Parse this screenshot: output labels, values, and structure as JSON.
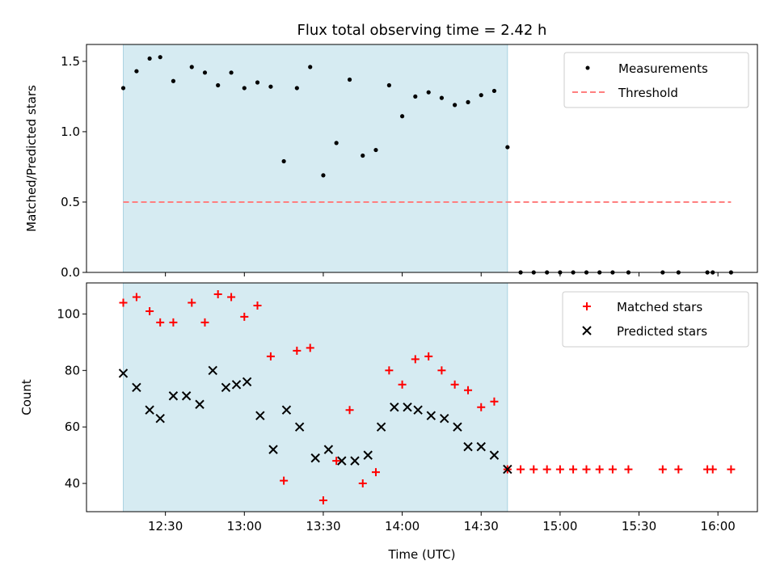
{
  "chart_data": [
    {
      "type": "scatter",
      "title": "Flux total observing time = 2.42 h",
      "xlabel": "",
      "ylabel": "Matched/Predicted stars",
      "xlim": [
        12.0,
        16.25
      ],
      "ylim": [
        0.0,
        1.62
      ],
      "yticks": [
        0.0,
        0.5,
        1.0,
        1.5
      ],
      "yticklabels": [
        "0.0",
        "0.5",
        "1.0",
        "1.5"
      ],
      "shaded_region": {
        "x": [
          12.233,
          14.667
        ],
        "color": "#add8e6"
      },
      "legend": {
        "location": "top-right",
        "entries": [
          "Measurements",
          "Threshold"
        ]
      },
      "series": [
        {
          "name": "Measurements",
          "marker": "dot",
          "color": "#000000",
          "x": [
            12.233,
            12.317,
            12.4,
            12.467,
            12.55,
            12.667,
            12.75,
            12.833,
            12.917,
            13.0,
            13.083,
            13.167,
            13.25,
            13.333,
            13.417,
            13.5,
            13.583,
            13.667,
            13.75,
            13.833,
            13.917,
            14.0,
            14.083,
            14.167,
            14.25,
            14.333,
            14.417,
            14.5,
            14.583,
            14.667,
            14.75,
            14.833,
            14.917,
            15.0,
            15.083,
            15.167,
            15.25,
            15.333,
            15.433,
            15.65,
            15.75,
            15.933,
            15.967,
            16.083
          ],
          "y": [
            1.31,
            1.43,
            1.52,
            1.53,
            1.36,
            1.46,
            1.42,
            1.33,
            1.42,
            1.31,
            1.35,
            1.32,
            0.79,
            1.31,
            1.46,
            0.69,
            0.92,
            1.37,
            0.83,
            0.87,
            1.33,
            1.11,
            1.25,
            1.28,
            1.24,
            1.19,
            1.21,
            1.26,
            1.29,
            0.89,
            0.0,
            0.0,
            0.0,
            0.0,
            0.0,
            0.0,
            0.0,
            0.0,
            0.0,
            0.0,
            0.0,
            0.0,
            0.0,
            0.0
          ]
        },
        {
          "name": "Threshold",
          "style": "dashed-line",
          "color": "#ff7f7f",
          "x": [
            12.233,
            16.083
          ],
          "y": [
            0.5,
            0.5
          ]
        }
      ]
    },
    {
      "type": "scatter",
      "title": "",
      "xlabel": "Time (UTC)",
      "ylabel": "Count",
      "xlim": [
        12.0,
        16.25
      ],
      "ylim": [
        30,
        111
      ],
      "yticks": [
        40,
        60,
        80,
        100
      ],
      "yticklabels": [
        "40",
        "60",
        "80",
        "100"
      ],
      "xticks": [
        12.5,
        13.0,
        13.5,
        14.0,
        14.5,
        15.0,
        15.5,
        16.0
      ],
      "xticklabels": [
        "12:30",
        "13:00",
        "13:30",
        "14:00",
        "14:30",
        "15:00",
        "15:30",
        "16:00"
      ],
      "shaded_region": {
        "x": [
          12.233,
          14.667
        ],
        "color": "#add8e6"
      },
      "legend": {
        "location": "top-right",
        "entries": [
          "Matched stars",
          "Predicted stars"
        ]
      },
      "series": [
        {
          "name": "Matched stars",
          "marker": "plus",
          "color": "#ff0000",
          "x": [
            12.233,
            12.317,
            12.4,
            12.467,
            12.55,
            12.667,
            12.75,
            12.833,
            12.917,
            13.0,
            13.083,
            13.167,
            13.25,
            13.333,
            13.417,
            13.5,
            13.583,
            13.667,
            13.75,
            13.833,
            13.917,
            14.0,
            14.083,
            14.167,
            14.25,
            14.333,
            14.417,
            14.5,
            14.583,
            14.667,
            14.75,
            14.833,
            14.917,
            15.0,
            15.083,
            15.167,
            15.25,
            15.333,
            15.433,
            15.65,
            15.75,
            15.933,
            15.967,
            16.083
          ],
          "y": [
            104,
            106,
            101,
            97,
            97,
            104,
            97,
            107,
            106,
            99,
            103,
            85,
            41,
            87,
            88,
            34,
            48,
            66,
            40,
            44,
            80,
            75,
            84,
            85,
            80,
            75,
            73,
            67,
            69,
            45,
            45,
            45,
            45,
            45,
            45,
            45,
            45,
            45,
            45,
            45,
            45,
            45,
            45,
            45
          ]
        },
        {
          "name": "Predicted stars",
          "marker": "x",
          "color": "#000000",
          "x": [
            12.233,
            12.317,
            12.4,
            12.467,
            12.55,
            12.633,
            12.717,
            12.8,
            12.883,
            12.95,
            13.017,
            13.1,
            13.183,
            13.267,
            13.35,
            13.45,
            13.533,
            13.617,
            13.7,
            13.783,
            13.867,
            13.95,
            14.033,
            14.1,
            14.183,
            14.267,
            14.35,
            14.417,
            14.5,
            14.583,
            14.667
          ],
          "y": [
            79,
            74,
            66,
            63,
            71,
            71,
            68,
            80,
            74,
            75,
            76,
            64,
            52,
            66,
            60,
            49,
            52,
            48,
            48,
            50,
            60,
            67,
            67,
            66,
            64,
            63,
            60,
            53,
            53,
            50,
            45
          ]
        }
      ]
    }
  ]
}
